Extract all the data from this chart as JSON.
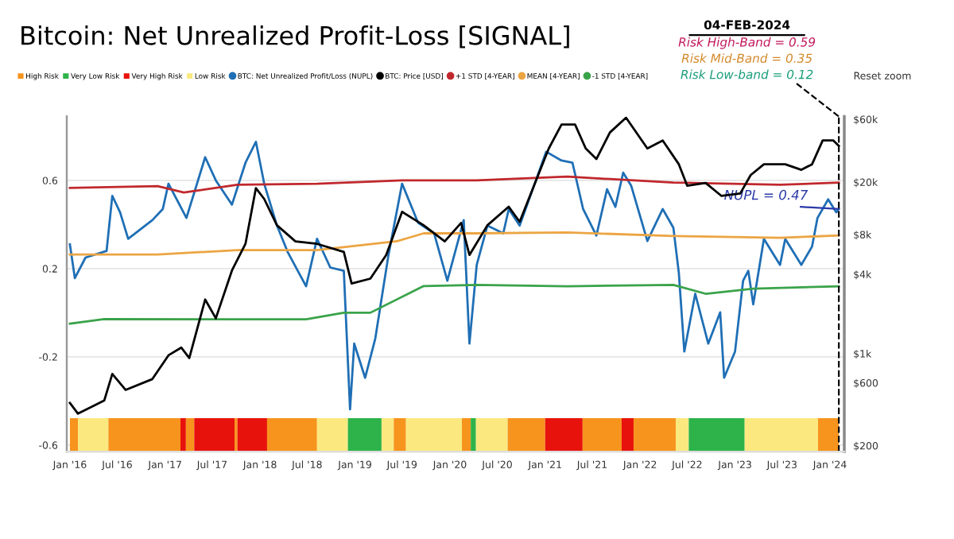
{
  "chart_data": {
    "type": "line",
    "title": "Bitcoin: Net Unrealized Profit-Loss [SIGNAL]",
    "annotations": [
      "04-FEB-2024",
      "Risk High-Band = 0.59",
      "Risk Mid-Band = 0.35",
      "Risk Low-band = 0.12",
      "Reset zoom",
      {
        "text": "NUPL = 0.47",
        "x": "2024-02-04",
        "y": 0.47
      }
    ],
    "xlim": [
      "2015-12-20",
      "2024-02-25"
    ],
    "xticks": [
      {
        "value": "2016-01-01",
        "label": "Jan '16"
      },
      {
        "value": "2016-07-01",
        "label": "Jul '16"
      },
      {
        "value": "2017-01-01",
        "label": "Jan '17"
      },
      {
        "value": "2017-07-01",
        "label": "Jul '17"
      },
      {
        "value": "2018-01-01",
        "label": "Jan '18"
      },
      {
        "value": "2018-07-01",
        "label": "Jul '18"
      },
      {
        "value": "2019-01-01",
        "label": "Jan '19"
      },
      {
        "value": "2019-07-01",
        "label": "Jul '19"
      },
      {
        "value": "2020-01-01",
        "label": "Jan '20"
      },
      {
        "value": "2020-07-01",
        "label": "Jul '20"
      },
      {
        "value": "2021-01-01",
        "label": "Jan '21"
      },
      {
        "value": "2021-07-01",
        "label": "Jul '21"
      },
      {
        "value": "2022-01-01",
        "label": "Jan '22"
      },
      {
        "value": "2022-07-01",
        "label": "Jul '22"
      },
      {
        "value": "2023-01-01",
        "label": "Jan '23"
      },
      {
        "value": "2023-07-01",
        "label": "Jul '23"
      },
      {
        "value": "2024-01-01",
        "label": "Jan '24"
      }
    ],
    "ylim": [
      -0.63,
      0.89
    ],
    "yticks": [
      0.6,
      0.2,
      -0.2,
      -0.6
    ],
    "y2lim": [
      180,
      63000
    ],
    "y2ticks": [
      {
        "value": 60000,
        "label": "$60k"
      },
      {
        "value": 20000,
        "label": "$20k"
      },
      {
        "value": 8000,
        "label": "$8k"
      },
      {
        "value": 4000,
        "label": "$4k"
      },
      {
        "value": 1000,
        "label": "$1k"
      },
      {
        "value": 600,
        "label": "$600"
      },
      {
        "value": 200,
        "label": "$200"
      }
    ],
    "log": "y2",
    "grid": "y",
    "legend": "top",
    "series": [
      {
        "name": "BTC: Net Unrealized Profit/Loss (NUPL)",
        "color": "#1f6fb5",
        "x": [
          "2016-01-01",
          "2016-01-20",
          "2016-03-01",
          "2016-05-21",
          "2016-06-12",
          "2016-07-12",
          "2016-08-12",
          "2016-11-13",
          "2016-12-23",
          "2017-01-14",
          "2017-03-24",
          "2017-06-04",
          "2017-07-15",
          "2017-09-15",
          "2017-11-06",
          "2017-12-16",
          "2018-01-17",
          "2018-03-07",
          "2018-04-17",
          "2018-06-27",
          "2018-08-08",
          "2018-09-28",
          "2018-11-19",
          "2018-12-13",
          "2018-12-29",
          "2019-02-09",
          "2019-03-20",
          "2019-05-10",
          "2019-07-01",
          "2019-09-01",
          "2019-11-01",
          "2019-12-22",
          "2020-02-23",
          "2020-03-16",
          "2020-04-13",
          "2020-05-24",
          "2020-07-24",
          "2020-08-14",
          "2020-09-25",
          "2021-01-05",
          "2021-03-05",
          "2021-04-16",
          "2021-05-27",
          "2021-07-17",
          "2021-08-27",
          "2021-09-28",
          "2021-10-28",
          "2021-11-28",
          "2022-01-29",
          "2022-03-29",
          "2022-05-09",
          "2022-05-30",
          "2022-06-20",
          "2022-08-01",
          "2022-09-20",
          "2022-11-05",
          "2022-11-20",
          "2023-01-01",
          "2023-02-01",
          "2023-02-21",
          "2023-03-12",
          "2023-04-22",
          "2023-06-23",
          "2023-07-13",
          "2023-09-13",
          "2023-10-24",
          "2023-11-14",
          "2023-12-25",
          "2024-01-25",
          "2024-02-04"
        ],
        "values": [
          0.31,
          0.157,
          0.25,
          0.28,
          0.53,
          0.455,
          0.335,
          0.42,
          0.47,
          0.585,
          0.43,
          0.705,
          0.6,
          0.49,
          0.68,
          0.775,
          0.585,
          0.395,
          0.276,
          0.12,
          0.335,
          0.205,
          0.19,
          -0.438,
          -0.14,
          -0.295,
          -0.117,
          0.264,
          0.585,
          0.407,
          0.36,
          0.145,
          0.42,
          -0.14,
          0.217,
          0.395,
          0.36,
          0.47,
          0.395,
          0.73,
          0.69,
          0.68,
          0.47,
          0.35,
          0.56,
          0.48,
          0.635,
          0.575,
          0.325,
          0.47,
          0.385,
          0.18,
          -0.176,
          0.086,
          -0.14,
          0.002,
          -0.295,
          -0.176,
          0.145,
          0.19,
          0.038,
          0.335,
          0.217,
          0.335,
          0.217,
          0.3,
          0.43,
          0.514,
          0.455,
          0.47
        ]
      },
      {
        "name": "BTC: Price [USD]",
        "color": "#000000",
        "axis": "y2",
        "x": [
          "2016-01-01",
          "2016-02-01",
          "2016-05-12",
          "2016-06-12",
          "2016-08-02",
          "2016-11-13",
          "2017-01-14",
          "2017-03-04",
          "2017-04-04",
          "2017-06-04",
          "2017-07-15",
          "2017-09-15",
          "2017-11-06",
          "2017-12-16",
          "2018-01-17",
          "2018-03-07",
          "2018-05-17",
          "2018-08-08",
          "2018-11-19",
          "2018-12-19",
          "2019-03-01",
          "2019-05-01",
          "2019-07-01",
          "2019-09-22",
          "2019-12-12",
          "2020-02-13",
          "2020-03-16",
          "2020-05-24",
          "2020-08-14",
          "2020-09-25",
          "2021-01-15",
          "2021-03-05",
          "2021-04-26",
          "2021-06-06",
          "2021-07-17",
          "2021-09-07",
          "2021-11-08",
          "2022-01-29",
          "2022-03-29",
          "2022-05-30",
          "2022-07-01",
          "2022-09-10",
          "2022-11-10",
          "2023-01-21",
          "2023-03-02",
          "2023-04-22",
          "2023-07-13",
          "2023-09-13",
          "2023-10-24",
          "2023-12-04",
          "2024-01-14",
          "2024-02-04"
        ],
        "values": [
          422,
          350,
          440,
          700,
          530,
          640,
          970,
          1110,
          925,
          2570,
          1850,
          4270,
          6800,
          18000,
          14900,
          9400,
          7100,
          6800,
          5900,
          3400,
          3700,
          5600,
          11900,
          9400,
          7100,
          9800,
          5600,
          9400,
          13000,
          10000,
          36000,
          54700,
          54700,
          36000,
          29900,
          47600,
          61700,
          36000,
          41400,
          27300,
          18800,
          19700,
          15700,
          16400,
          22600,
          27300,
          27300,
          24800,
          27300,
          41400,
          41400,
          37700
        ]
      },
      {
        "name": "+1 STD [4-YEAR]",
        "color": "#c0282d",
        "x": [
          "2016-01-01",
          "2016-12-03",
          "2017-03-14",
          "2017-10-06",
          "2018-08-08",
          "2019-07-01",
          "2020-04-13",
          "2021-03-27",
          "2022-05-09",
          "2023-06-23",
          "2024-02-04"
        ],
        "values": [
          0.566,
          0.574,
          0.545,
          0.58,
          0.585,
          0.6,
          0.6,
          0.617,
          0.59,
          0.58,
          0.59
        ]
      },
      {
        "name": "MEAN [4-YEAR]",
        "color": "#eca543",
        "x": [
          "2016-01-01",
          "2016-12-03",
          "2017-10-06",
          "2018-08-08",
          "2019-06-11",
          "2019-09-22",
          "2020-04-13",
          "2021-03-27",
          "2022-05-09",
          "2023-06-23",
          "2024-02-04"
        ],
        "values": [
          0.264,
          0.264,
          0.284,
          0.284,
          0.324,
          0.36,
          0.36,
          0.364,
          0.348,
          0.34,
          0.35
        ]
      },
      {
        "name": "-1 STD [4-YEAR]",
        "color": "#3aa34a",
        "x": [
          "2016-01-01",
          "2016-05-12",
          "2017-06-25",
          "2018-06-27",
          "2018-11-19",
          "2019-03-01",
          "2019-09-22",
          "2020-04-13",
          "2021-03-27",
          "2022-05-09",
          "2022-09-10",
          "2023-03-12",
          "2024-02-04"
        ],
        "values": [
          -0.05,
          -0.029,
          -0.03,
          -0.03,
          0.0,
          0.0,
          0.121,
          0.126,
          0.12,
          0.126,
          0.086,
          0.109,
          0.12
        ]
      }
    ],
    "ref_lines": [
      {
        "axis": "x",
        "value": "2024-02-04",
        "color": "#000000",
        "line_style": "dashed"
      }
    ],
    "bands": [
      {
        "axis": "x",
        "from": "2016-01-01",
        "to": "2016-02-01",
        "label": "High Risk",
        "color": "#f7941d"
      },
      {
        "axis": "x",
        "from": "2018-12-04",
        "to": "2019-04-13",
        "label": "Very Low Risk",
        "color": "#2db34a"
      },
      {
        "axis": "x",
        "from": "2017-03-01",
        "to": "2017-03-22",
        "label": "Very High Risk",
        "color": "#e8120c"
      },
      {
        "axis": "x",
        "from": "2016-02-01",
        "to": "2016-05-28",
        "label": "Low Risk",
        "color": "#fbe97f"
      },
      {
        "axis": "x",
        "from": "2016-05-28",
        "to": "2017-03-01",
        "color": "#f7941d"
      },
      {
        "axis": "x",
        "from": "2017-03-22",
        "to": "2017-04-23",
        "color": "#f7941d"
      },
      {
        "axis": "x",
        "from": "2017-04-23",
        "to": "2017-09-25",
        "color": "#e8120c"
      },
      {
        "axis": "x",
        "from": "2017-09-25",
        "to": "2017-10-06",
        "color": "#f7941d"
      },
      {
        "axis": "x",
        "from": "2017-10-06",
        "to": "2018-01-28",
        "color": "#e8120c"
      },
      {
        "axis": "x",
        "from": "2018-01-28",
        "to": "2018-08-08",
        "color": "#f7941d"
      },
      {
        "axis": "x",
        "from": "2018-08-08",
        "to": "2018-12-04",
        "color": "#fbe97f"
      },
      {
        "axis": "x",
        "from": "2019-04-13",
        "to": "2019-05-30",
        "color": "#fbe97f"
      },
      {
        "axis": "x",
        "from": "2019-05-30",
        "to": "2019-07-16",
        "color": "#f7941d"
      },
      {
        "axis": "x",
        "from": "2019-07-16",
        "to": "2020-02-16",
        "color": "#fbe97f"
      },
      {
        "axis": "x",
        "from": "2020-02-16",
        "to": "2020-03-21",
        "color": "#f7941d"
      },
      {
        "axis": "x",
        "from": "2020-03-21",
        "to": "2020-04-10",
        "color": "#2db34a"
      },
      {
        "axis": "x",
        "from": "2020-04-10",
        "to": "2020-08-10",
        "color": "#fbe97f"
      },
      {
        "axis": "x",
        "from": "2020-08-10",
        "to": "2021-01-01",
        "color": "#f7941d"
      },
      {
        "axis": "x",
        "from": "2021-01-01",
        "to": "2021-05-25",
        "color": "#e8120c"
      },
      {
        "axis": "x",
        "from": "2021-05-25",
        "to": "2021-10-22",
        "color": "#f7941d"
      },
      {
        "axis": "x",
        "from": "2021-10-22",
        "to": "2021-12-07",
        "color": "#e8120c"
      },
      {
        "axis": "x",
        "from": "2021-12-07",
        "to": "2022-05-18",
        "color": "#f7941d"
      },
      {
        "axis": "x",
        "from": "2022-05-18",
        "to": "2022-07-07",
        "color": "#fbe97f"
      },
      {
        "axis": "x",
        "from": "2022-07-07",
        "to": "2023-02-07",
        "color": "#2db34a"
      },
      {
        "axis": "x",
        "from": "2023-02-07",
        "to": "2023-11-16",
        "color": "#fbe97f"
      },
      {
        "axis": "x",
        "from": "2023-11-16",
        "to": "2024-02-04",
        "color": "#f7941d"
      }
    ]
  }
}
